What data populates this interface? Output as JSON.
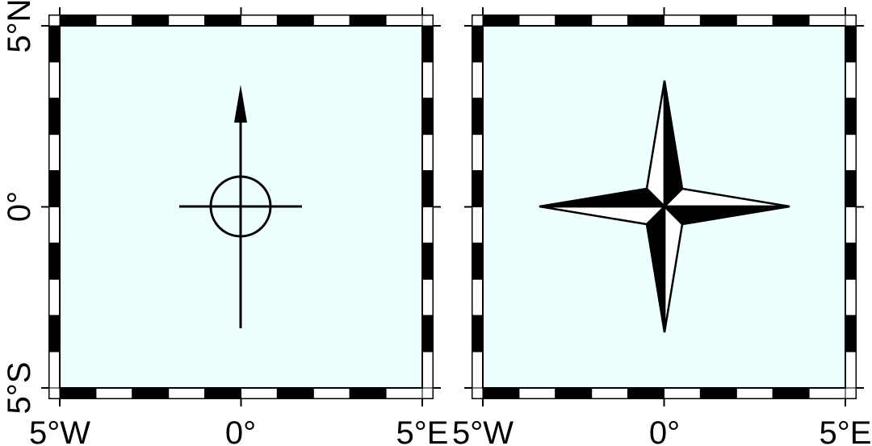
{
  "colors": {
    "map_fill": "#EEFFFF",
    "frame_dark": "#000000",
    "frame_light": "#FFFFFF"
  },
  "map": {
    "longitude_range_deg": [
      -5,
      5
    ],
    "latitude_range_deg": [
      -5,
      5
    ],
    "frame_style": "checkerboard",
    "frame_interval_deg": 1
  },
  "panels": [
    {
      "symbol": "crosshair-circle-with-north-arrow",
      "center_lon_lat": [
        0,
        0
      ],
      "x_tick_labels": [
        "5°W",
        "0°",
        "5°E"
      ],
      "y_tick_labels": [
        "5°N",
        "0°",
        "5°S"
      ]
    },
    {
      "symbol": "four-point-compass-rose",
      "center_lon_lat": [
        0,
        0
      ],
      "x_tick_labels": [
        "5°W",
        "0°",
        "5°E"
      ],
      "y_tick_labels": []
    }
  ]
}
